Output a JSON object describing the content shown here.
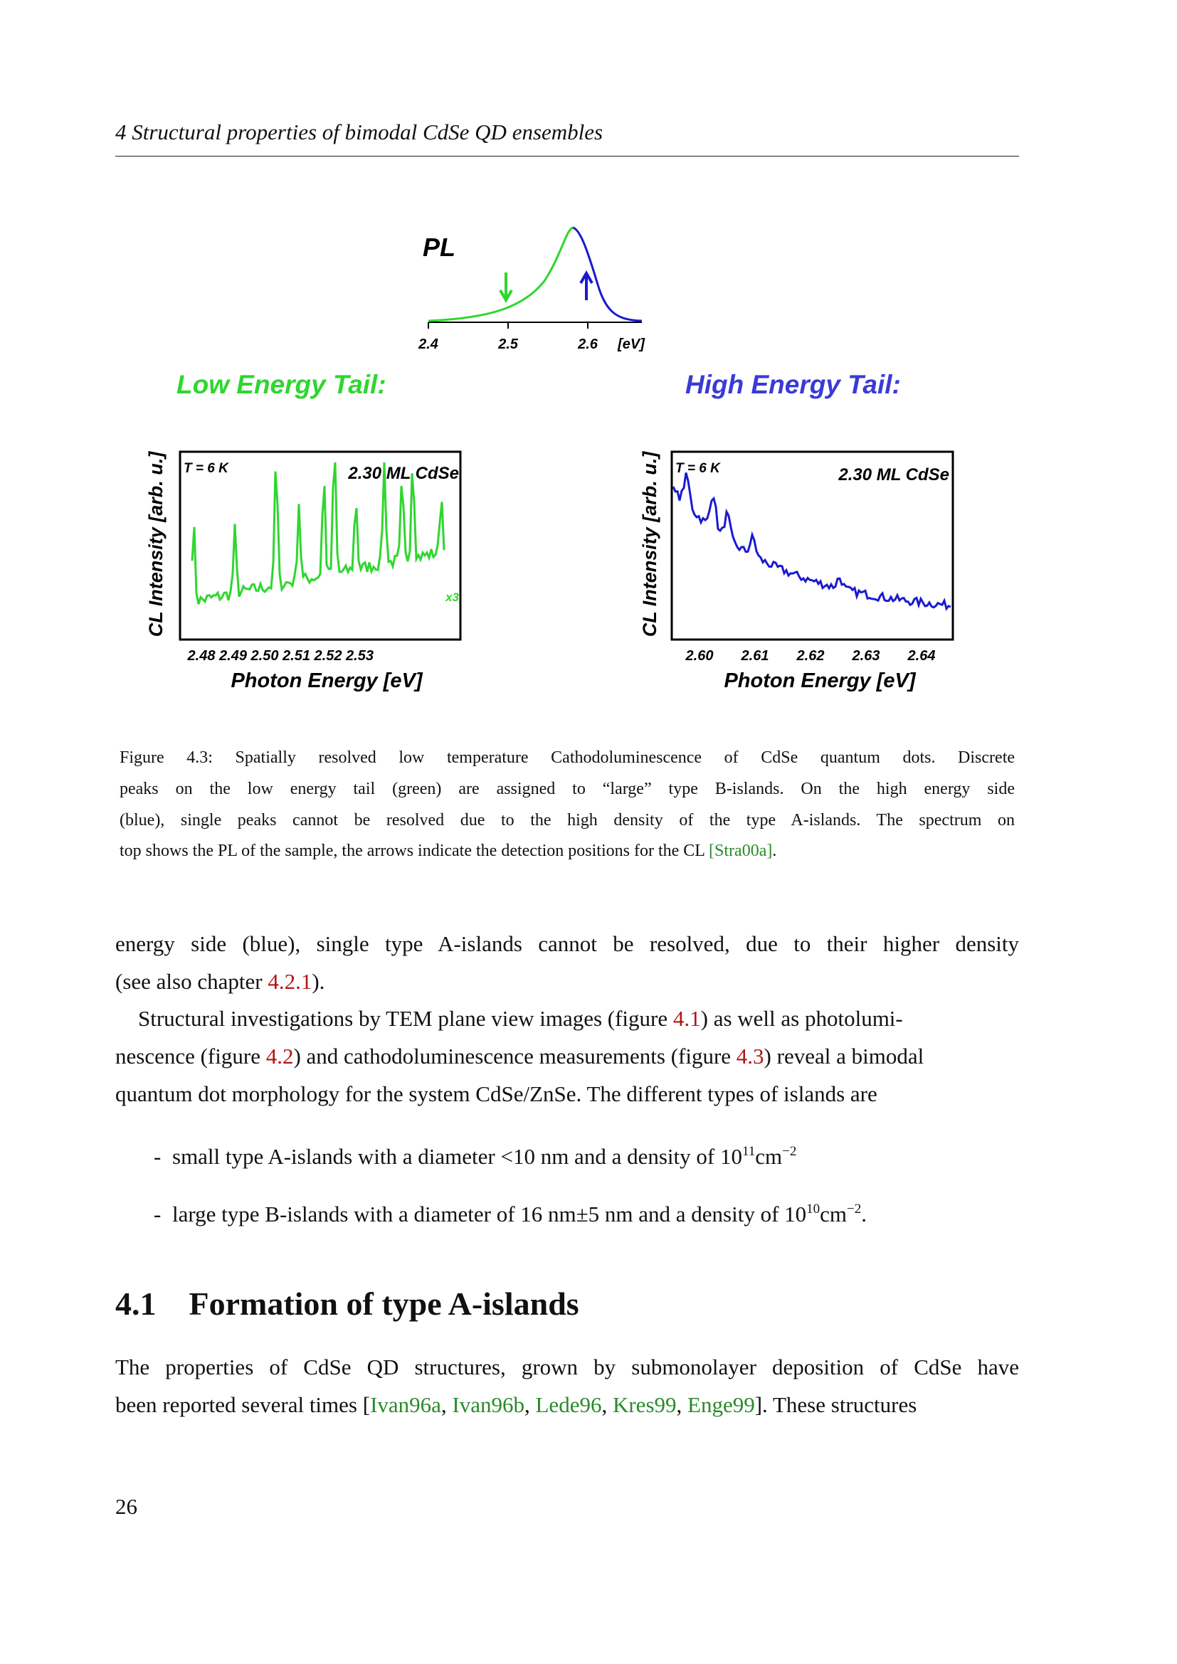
{
  "header": {
    "running_title": "4 Structural properties of bimodal CdSe QD ensembles"
  },
  "figure": {
    "pl": {
      "label": "PL",
      "ticks": [
        "2.4",
        "2.5",
        "2.6",
        "[eV]"
      ]
    },
    "left": {
      "title": "Low Energy Tail:",
      "ylabel": "CL Intensity [arb. u.]",
      "temperature": "T = 6 K",
      "sample": "2.30 ML CdSe",
      "factor": "x3",
      "xticks": [
        "2.48",
        "2.49",
        "2.50",
        "2.51",
        "2.52",
        "2.53"
      ],
      "xlabel": "Photon Energy [eV]"
    },
    "right": {
      "title": "High Energy Tail:",
      "ylabel": "CL Intensity [arb. u.]",
      "temperature": "T = 6 K",
      "sample": "2.30 ML CdSe",
      "xticks": [
        "2.60",
        "2.61",
        "2.62",
        "2.63",
        "2.64"
      ],
      "xlabel": "Photon Energy [eV]"
    },
    "caption": {
      "label": "Figure 4.3:",
      "lines": [
        [
          "Spatially resolved low temperature Cathodoluminescence of CdSe quantum dots. Discrete"
        ],
        [
          "peaks on the low energy tail (green) are assigned to “large” type B-islands. On the high energy side"
        ],
        [
          "(blue), single peaks cannot be resolved due to the high density of the type A-islands. The spectrum on"
        ],
        [
          "top shows the PL of the sample, the arrows indicate the detection positions for the CL ",
          "[Stra00a]",
          "."
        ]
      ]
    }
  },
  "body": {
    "paragraphs": [
      {
        "lines": [
          [
            "energy side (blue), single type A-islands cannot be resolved, due to their higher density"
          ],
          [
            "(see also chapter ",
            "4.2.1",
            ")."
          ]
        ]
      },
      {
        "lines": [
          [
            "Structural investigations by TEM plane view images (figure ",
            "4.1",
            ") as well as photolumi-"
          ],
          [
            "nescence (figure ",
            "4.2",
            ") and cathodoluminescence measurements (figure ",
            "4.3",
            ") reveal a bimodal"
          ],
          [
            "quantum dot morphology for the system CdSe/ZnSe. The different types of islands are"
          ]
        ]
      }
    ],
    "list": {
      "marker": "-",
      "items": [
        [
          "small type A-islands with a diameter <10 nm and a density of 10",
          "11",
          "cm",
          "−2"
        ],
        [
          "large type B-islands with a diameter of 16 nm±5 nm and a density of 10",
          "10",
          "cm",
          "−2",
          "."
        ]
      ]
    },
    "section": {
      "number": "4.1",
      "title": "Formation of type A-islands"
    },
    "section_paragraph": {
      "lines": [
        [
          "The properties of CdSe QD structures, grown by submonolayer deposition of CdSe have"
        ],
        [
          "been reported several times [",
          "Ivan96a",
          ", ",
          "Ivan96b",
          ", ",
          "Lede96",
          ", ",
          "Kres99",
          ", ",
          "Enge99",
          "]. These structures"
        ]
      ]
    }
  },
  "footer": {
    "page_number": "26"
  }
}
